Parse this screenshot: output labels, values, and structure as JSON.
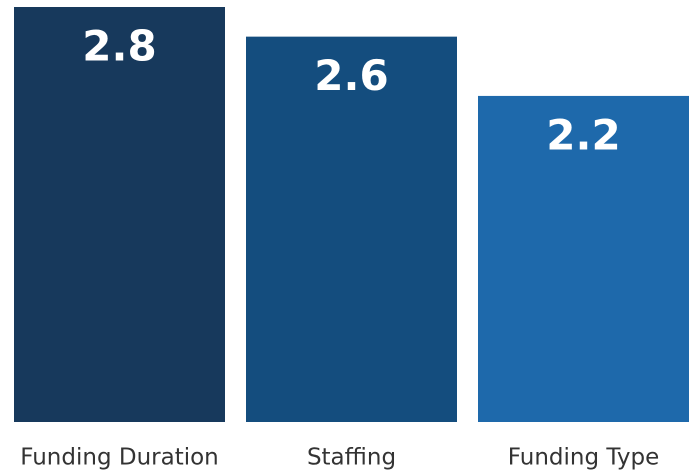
{
  "chart_data": {
    "type": "bar",
    "categories": [
      "Funding Duration",
      "Staffing",
      "Funding Type"
    ],
    "values": [
      2.8,
      2.6,
      2.2
    ],
    "colors": [
      "#17395c",
      "#144d7e",
      "#1e69ab"
    ],
    "ylim": [
      0,
      2.8
    ]
  }
}
